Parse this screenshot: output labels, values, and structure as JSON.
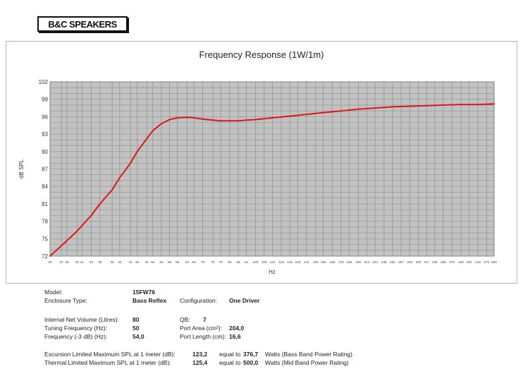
{
  "logo": {
    "text": "B&C SPEAKERS"
  },
  "chart_data": {
    "type": "line",
    "title": "Frequency Response (1W/1m)",
    "xlabel": "Hz",
    "ylabel": "dB SPL",
    "xscale": "log",
    "grid": true,
    "legend": "none",
    "ylim": [
      72,
      102
    ],
    "yticks": [
      "102",
      "99",
      "96",
      "93",
      "90",
      "87",
      "84",
      "81",
      "78",
      "75",
      "72"
    ],
    "xticks": [
      "25",
      "27",
      "28",
      "30",
      "31",
      "33",
      "35",
      "38",
      "40",
      "43",
      "45",
      "48",
      "50",
      "53",
      "56",
      "59",
      "63",
      "66",
      "70",
      "75",
      "79",
      "84",
      "89",
      "94",
      "100",
      "106",
      "112",
      "119",
      "126",
      "133",
      "141",
      "150",
      "158",
      "168",
      "178",
      "188",
      "200",
      "212",
      "224",
      "238",
      "252",
      "267",
      "283",
      "300",
      "317",
      "335",
      "355",
      "376",
      "400",
      "422",
      "448",
      "475",
      "500"
    ],
    "series": [
      {
        "color": "#e01515",
        "x": [
          25,
          27,
          30,
          33,
          35,
          38,
          40,
          43,
          45,
          48,
          50,
          53,
          56,
          59,
          63,
          66,
          70,
          75,
          79,
          84,
          89,
          94,
          100,
          112,
          126,
          141,
          158,
          178,
          200,
          224,
          252,
          283,
          317,
          355,
          400,
          448,
          500
        ],
        "y": [
          72.0,
          73.8,
          76.3,
          79.0,
          81.0,
          83.4,
          85.5,
          88.0,
          90.0,
          92.2,
          93.6,
          94.8,
          95.5,
          95.8,
          95.9,
          95.8,
          95.6,
          95.4,
          95.3,
          95.3,
          95.3,
          95.4,
          95.5,
          95.8,
          96.1,
          96.4,
          96.7,
          97.0,
          97.3,
          97.5,
          97.7,
          97.8,
          97.9,
          98.0,
          98.1,
          98.1,
          98.2
        ]
      }
    ]
  },
  "specs": {
    "model_label": "Model:",
    "model_value": "15FW76",
    "enclosure_label": "Enclosure Type:",
    "enclosure_value": "Bass Reflex",
    "config_label": "Configuration:",
    "config_value": "One Driver",
    "volume_label": "Internal  Net Volume (Litres):",
    "volume_value": "80",
    "qb_label": "QB:",
    "qb_value": "7",
    "tuning_label": "Tuning Frequency (Hz):",
    "tuning_value": "50",
    "port_area_label": "Port Area (cm²):",
    "port_area_value": "204,0",
    "freq3db_label": "Frequency (-3 dB) (Hz):",
    "freq3db_value": "54,0",
    "port_length_label": "Port Length (cm):",
    "port_length_value": "16,6",
    "excursion_label": "Excursion Limited Maximum SPL at 1 meter (dB):",
    "excursion_value": "123,2",
    "excursion_equal": "equal to",
    "excursion_watts": "376,7",
    "excursion_unit": "Watts (Bass Band Power Rating)",
    "thermal_label": "Thermal Limited Maximum SPL at 1 meter (dB):",
    "thermal_value": "125,4",
    "thermal_equal": "equal to",
    "thermal_watts": "500,0",
    "thermal_unit": "Watts (Mid Band Power Rating)"
  }
}
